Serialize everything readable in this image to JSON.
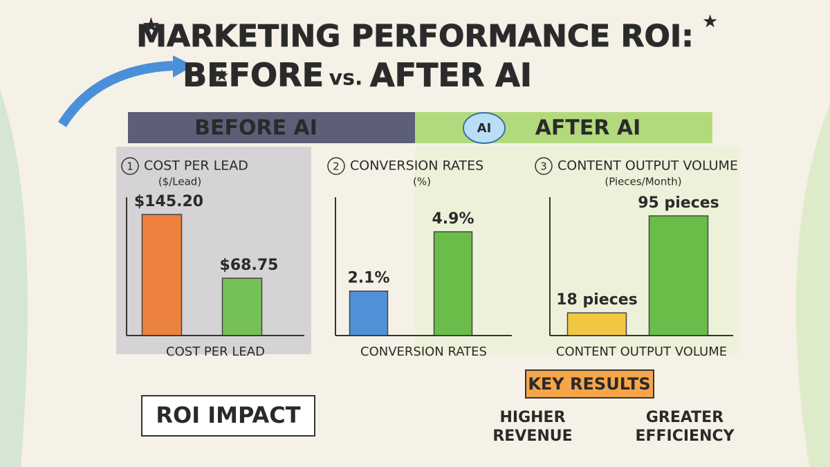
{
  "title": {
    "line1": "MARKETING PERFORMANCE ROI:",
    "before": "BEFORE",
    "vs": "vs.",
    "after": "AFTER AI"
  },
  "sections": {
    "before": "BEFORE AI",
    "ai_icon": "AI",
    "after": "AFTER AI"
  },
  "chart_data": [
    {
      "type": "bar",
      "number": "1",
      "title": "COST PER LEAD",
      "subtitle": "($/Lead)",
      "xlabel": "COST PER LEAD",
      "values": [
        145.2,
        68.75
      ],
      "value_labels": [
        "$145.20",
        "$68.75"
      ],
      "colors": [
        "#f07a2e",
        "#6cc04a"
      ]
    },
    {
      "type": "bar",
      "number": "2",
      "title": "CONVERSION RATES",
      "subtitle": "(%)",
      "xlabel": "CONVERSION RATES",
      "values": [
        2.1,
        4.9
      ],
      "value_labels": [
        "2.1%",
        "4.9%"
      ],
      "colors": [
        "#3f86d6",
        "#5cb83a"
      ]
    },
    {
      "type": "bar",
      "number": "3",
      "title": "CONTENT OUTPUT VOLUME",
      "subtitle": "(Pieces/Month)",
      "xlabel": "CONTENT OUTPUT VOLUME",
      "values": [
        18,
        95
      ],
      "value_labels": [
        "18 pieces",
        "95 pieces"
      ],
      "colors": [
        "#f2c230",
        "#5cb83a"
      ]
    }
  ],
  "footer": {
    "roi": "ROI IMPACT",
    "key_results": "KEY RESULTS",
    "results": [
      [
        "HIGHER",
        "REVENUE"
      ],
      [
        "GREATER",
        "EFFICIENCY"
      ]
    ]
  }
}
